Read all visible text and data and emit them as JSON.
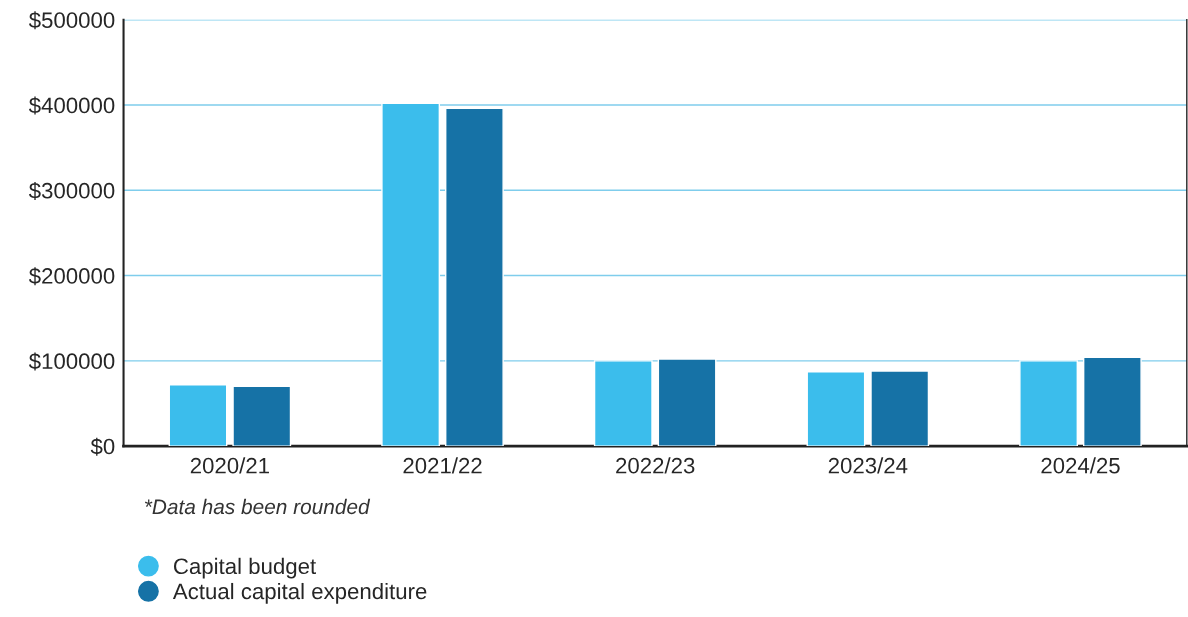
{
  "chart_data": {
    "type": "bar",
    "categories": [
      "2020/21",
      "2021/22",
      "2022/23",
      "2023/24",
      "2024/25"
    ],
    "series": [
      {
        "name": "Capital budget",
        "color": "#3bbdec",
        "values": [
          72000,
          402000,
          100000,
          87000,
          100000
        ]
      },
      {
        "name": "Actual capital expenditure",
        "color": "#1672a6",
        "values": [
          70000,
          396000,
          102000,
          88000,
          104000
        ]
      }
    ],
    "ylim": [
      0,
      500000
    ],
    "yticks": [
      {
        "value": 0,
        "label": "$0"
      },
      {
        "value": 100000,
        "label": "$100000"
      },
      {
        "value": 200000,
        "label": "$200000"
      },
      {
        "value": 300000,
        "label": "$300000"
      },
      {
        "value": 400000,
        "label": "$400000"
      },
      {
        "value": 500000,
        "label": "$500000"
      }
    ],
    "grid": "y",
    "legend": "bottom left",
    "marker": "circle",
    "annotations": [
      "*Data has been rounded"
    ]
  }
}
